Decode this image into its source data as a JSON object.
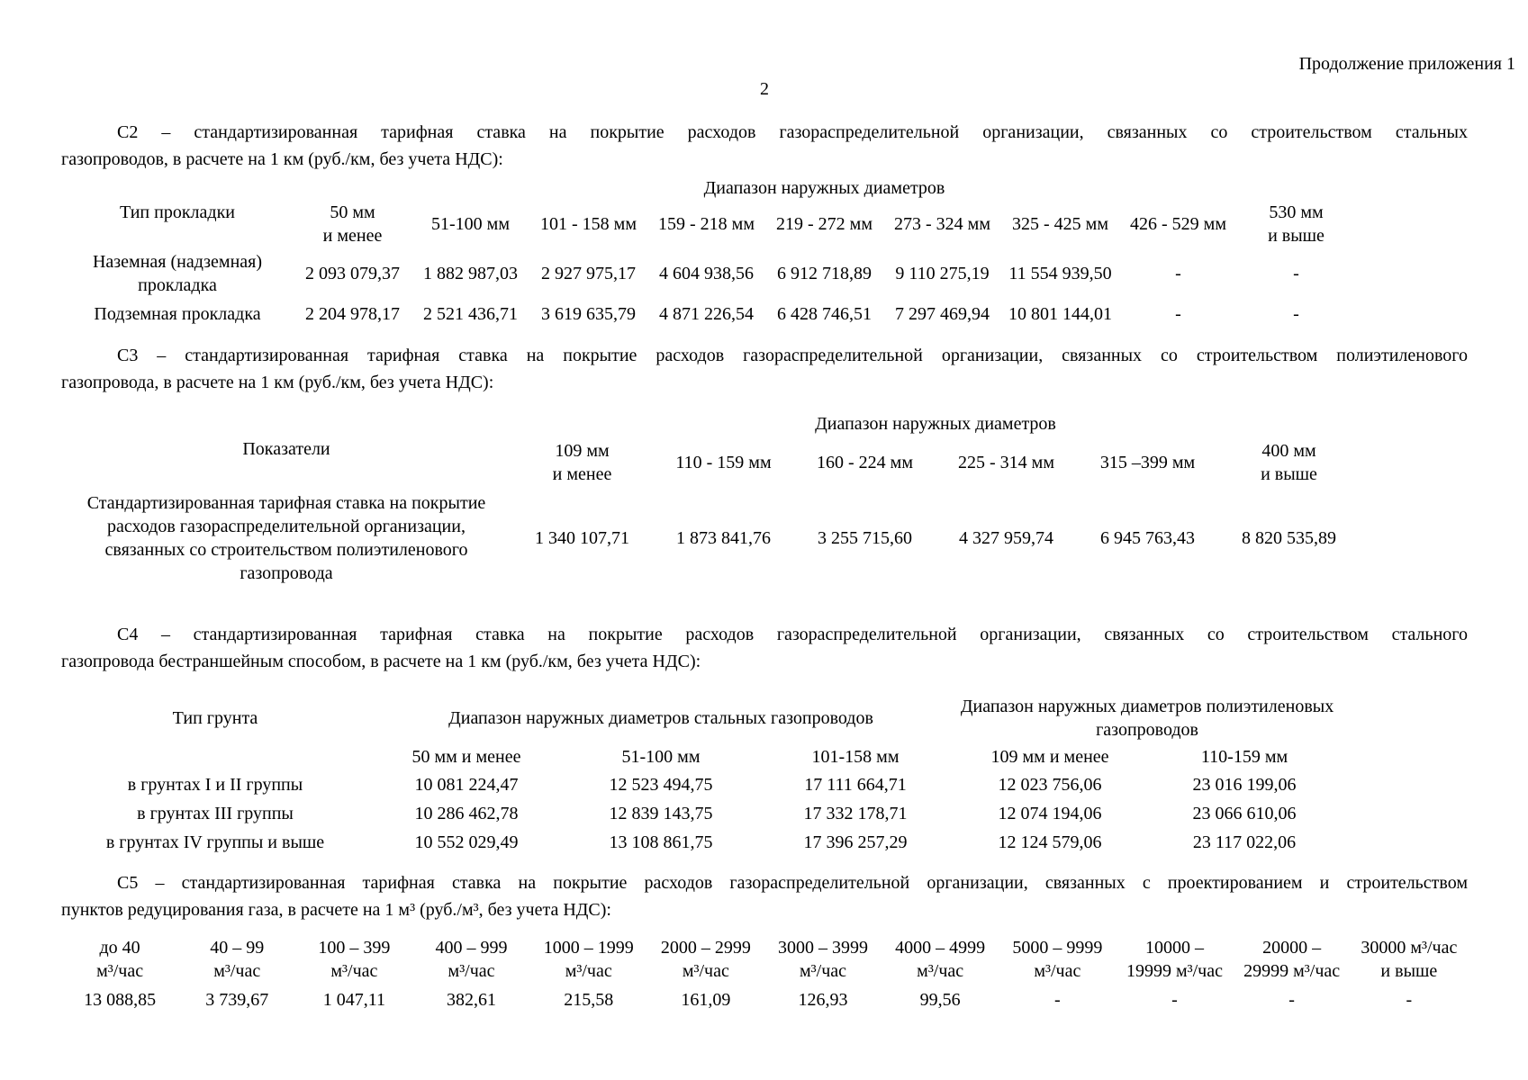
{
  "page": {
    "continuation": "Продолжение приложения 1",
    "number": "2"
  },
  "c2": {
    "intro_line1": "С2 – стандартизированная тарифная ставка на покрытие расходов газораспределительной организации, связанных со строительством стальных",
    "intro_line2": "газопроводов, в расчете на 1 км (руб./км, без учета НДС):",
    "table": {
      "corner_header": "Тип прокладки",
      "span_header": "Диапазон наружных диаметров",
      "columns": [
        "50 мм\nи менее",
        "51-100 мм",
        "101 - 158 мм",
        "159 - 218 мм",
        "219 - 272 мм",
        "273 - 324 мм",
        "325 - 425 мм",
        "426 - 529 мм",
        "530 мм\nи выше"
      ],
      "rows": [
        {
          "label": "Наземная (надземная)\nпрокладка",
          "values": [
            "2 093 079,37",
            "1 882 987,03",
            "2 927 975,17",
            "4 604 938,56",
            "6 912 718,89",
            "9 110 275,19",
            "11 554 939,50",
            "-",
            "-"
          ]
        },
        {
          "label": "Подземная прокладка",
          "values": [
            "2 204 978,17",
            "2 521 436,71",
            "3 619 635,79",
            "4 871 226,54",
            "6 428 746,51",
            "7 297 469,94",
            "10 801 144,01",
            "-",
            "-"
          ]
        }
      ]
    }
  },
  "c3": {
    "intro_line1": "С3 – стандартизированная тарифная ставка на покрытие расходов газораспределительной организации, связанных со строительством полиэтиленового",
    "intro_line2": "газопровода, в расчете на 1 км (руб./км, без учета НДС):",
    "table": {
      "corner_header": "Показатели",
      "span_header": "Диапазон наружных диаметров",
      "columns": [
        "109 мм\nи менее",
        "110 - 159 мм",
        "160 - 224 мм",
        "225 - 314 мм",
        "315 –399 мм",
        "400 мм\nи выше"
      ],
      "rows": [
        {
          "label": "Стандартизированная тарифная ставка на покрытие\nрасходов газораспределительной организации,\nсвязанных со строительством полиэтиленового\nгазопровода",
          "values": [
            "1 340 107,71",
            "1 873 841,76",
            "3 255 715,60",
            "4 327 959,74",
            "6 945 763,43",
            "8 820 535,89"
          ]
        }
      ]
    }
  },
  "c4": {
    "intro_line1": "С4 – стандартизированная тарифная ставка на покрытие расходов газораспределительной организации, связанных со строительством стального",
    "intro_line2": "газопровода бестраншейным способом, в расчете на 1 км (руб./км, без учета НДС):",
    "table": {
      "corner_header": "Тип грунта",
      "span_header_steel": "Диапазон наружных диаметров стальных газопроводов",
      "span_header_pe": "Диапазон наружных диаметров полиэтиленовых\nгазопроводов",
      "columns": [
        "50 мм и менее",
        "51-100 мм",
        "101-158 мм",
        "109 мм и менее",
        "110-159 мм"
      ],
      "rows": [
        {
          "label": "в грунтах I и II группы",
          "values": [
            "10 081 224,47",
            "12 523 494,75",
            "17 111 664,71",
            "12 023 756,06",
            "23 016 199,06"
          ]
        },
        {
          "label": "в грунтах III группы",
          "values": [
            "10 286 462,78",
            "12 839 143,75",
            "17 332 178,71",
            "12 074 194,06",
            "23 066 610,06"
          ]
        },
        {
          "label": "в грунтах IV группы и выше",
          "values": [
            "10 552 029,49",
            "13 108 861,75",
            "17 396 257,29",
            "12 124 579,06",
            "23 117 022,06"
          ]
        }
      ]
    }
  },
  "c5": {
    "intro_line1": "С5 – стандартизированная тарифная ставка на покрытие расходов газораспределительной организации, связанных с проектированием и строительством",
    "intro_line2": "пунктов редуцирования газа, в расчете на 1 м³ (руб./м³, без учета НДС):",
    "table": {
      "columns": [
        "до 40\nм³/час",
        "40 – 99\nм³/час",
        "100 – 399\nм³/час",
        "400 – 999\nм³/час",
        "1000 – 1999\nм³/час",
        "2000 – 2999\nм³/час",
        "3000 – 3999\nм³/час",
        "4000 – 4999\nм³/час",
        "5000 – 9999\nм³/час",
        "10000 –\n19999 м³/час",
        "20000 –\n29999 м³/час",
        "30000 м³/час\nи выше"
      ],
      "values": [
        "13 088,85",
        "3 739,67",
        "1 047,11",
        "382,61",
        "215,58",
        "161,09",
        "126,93",
        "99,56",
        "-",
        "-",
        "-",
        "-"
      ]
    }
  }
}
